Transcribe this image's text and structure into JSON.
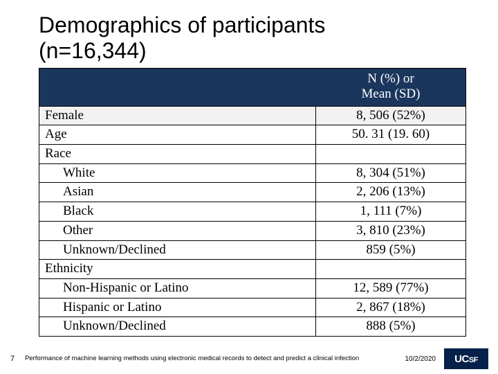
{
  "title_line1": "Demographics of participants",
  "title_line2": "(n=16,344)",
  "header_value_line1": "N (%) or",
  "header_value_line2": "Mean (SD)",
  "rows": [
    {
      "label": "Female",
      "value": "8, 506 (52%)",
      "indent": false,
      "alt": true
    },
    {
      "label": "Age",
      "value": "50. 31 (19. 60)",
      "indent": false,
      "alt": false
    },
    {
      "label": "Race",
      "value": "",
      "indent": false,
      "alt": false
    },
    {
      "label": "White",
      "value": "8, 304 (51%)",
      "indent": true,
      "alt": false
    },
    {
      "label": "Asian",
      "value": "2, 206 (13%)",
      "indent": true,
      "alt": false
    },
    {
      "label": "Black",
      "value": "1, 111 (7%)",
      "indent": true,
      "alt": false
    },
    {
      "label": "Other",
      "value": "3, 810 (23%)",
      "indent": true,
      "alt": false
    },
    {
      "label": "Unknown/Declined",
      "value": "859 (5%)",
      "indent": true,
      "alt": false
    },
    {
      "label": "Ethnicity",
      "value": "",
      "indent": false,
      "alt": false
    },
    {
      "label": "Non-Hispanic or Latino",
      "value": "12, 589 (77%)",
      "indent": true,
      "alt": false
    },
    {
      "label": "Hispanic or Latino",
      "value": "2, 867 (18%)",
      "indent": true,
      "alt": false
    },
    {
      "label": "Unknown/Declined",
      "value": "888 (5%)",
      "indent": true,
      "alt": false
    }
  ],
  "footer": {
    "page": "7",
    "text": "Performance of machine learning methods using electronic medical records to detect and predict a clinical infection",
    "date": "10/2/2020",
    "logo": "UCSF"
  },
  "colors": {
    "header_bg": "#1b365d",
    "logo_bg": "#052049",
    "alt_row_bg": "#f2f2f2"
  }
}
